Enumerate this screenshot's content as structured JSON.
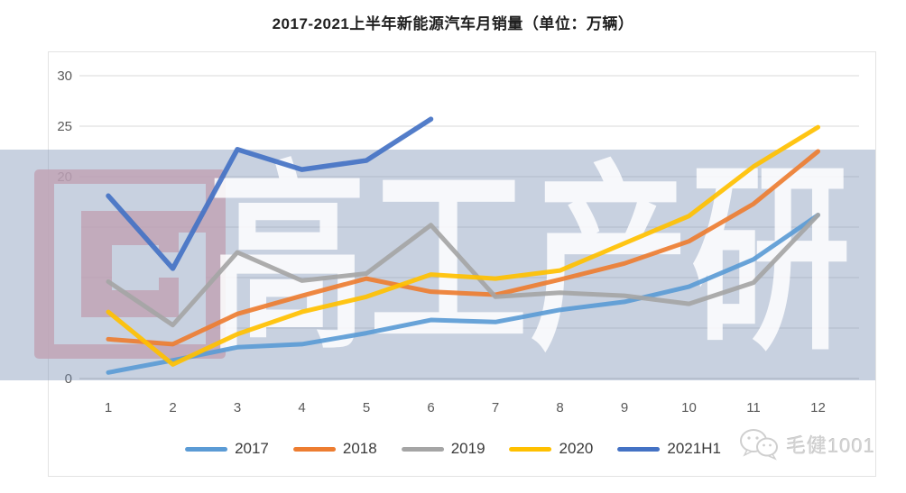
{
  "title": "2017-2021上半年新能源汽车月销量（单位：万辆）",
  "chart_data": {
    "type": "line",
    "x": [
      1,
      2,
      3,
      4,
      5,
      6,
      7,
      8,
      9,
      10,
      11,
      12
    ],
    "xlabel": "",
    "ylabel": "",
    "ylim": [
      0,
      30
    ],
    "yticks": [
      0,
      5,
      10,
      15,
      20,
      25,
      30
    ],
    "grid": true,
    "legend_position": "bottom",
    "series": [
      {
        "name": "2017",
        "color": "#5B9BD5",
        "values": [
          0.6,
          1.8,
          3.1,
          3.4,
          4.5,
          5.8,
          5.6,
          6.8,
          7.6,
          9.1,
          11.8,
          16.2
        ]
      },
      {
        "name": "2018",
        "color": "#ED7D31",
        "values": [
          3.9,
          3.4,
          6.4,
          8.2,
          9.9,
          8.6,
          8.3,
          9.8,
          11.4,
          13.6,
          17.3,
          22.5
        ]
      },
      {
        "name": "2019",
        "color": "#A5A5A5",
        "values": [
          9.6,
          5.3,
          12.5,
          9.7,
          10.4,
          15.2,
          8.1,
          8.5,
          8.2,
          7.4,
          9.5,
          16.2
        ]
      },
      {
        "name": "2020",
        "color": "#FFC000",
        "values": [
          6.6,
          1.4,
          4.4,
          6.6,
          8.1,
          10.3,
          9.9,
          10.7,
          13.4,
          16.1,
          21.0,
          24.9
        ]
      },
      {
        "name": "2021H1",
        "color": "#4472C4",
        "values": [
          18.1,
          10.9,
          22.7,
          20.7,
          21.6,
          25.7
        ]
      }
    ]
  },
  "watermarks": {
    "brand_text": "高工产研",
    "account_text": "毛健1001",
    "band_color": "rgba(124,146,182,0.42)",
    "logo_pink": "#F3ADB2"
  },
  "axis_text_color": "#595959",
  "gridline_color": "#d9d9d9"
}
